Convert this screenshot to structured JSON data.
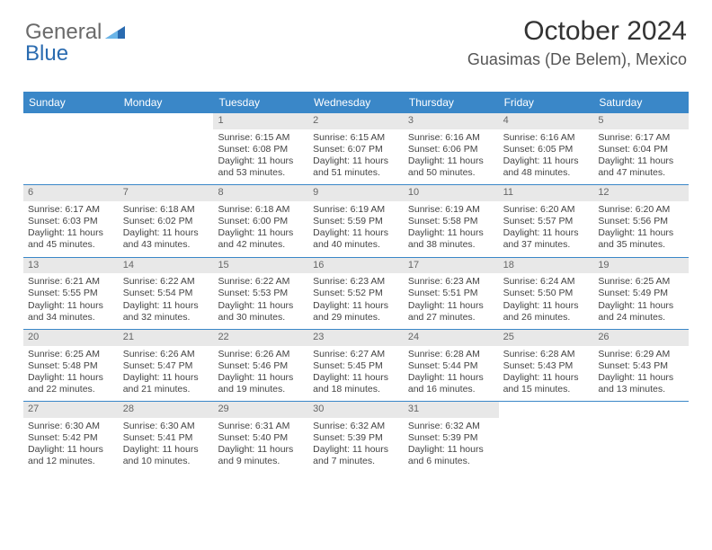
{
  "brand": {
    "part1": "General",
    "part2": "Blue"
  },
  "header": {
    "title": "October 2024",
    "location": "Guasimas (De Belem), Mexico"
  },
  "colors": {
    "header_bg": "#3a87c8",
    "header_text": "#ffffff",
    "daynum_bg": "#e8e8e8",
    "week_border": "#3a87c8",
    "body_text": "#444444"
  },
  "calendar": {
    "day_names": [
      "Sunday",
      "Monday",
      "Tuesday",
      "Wednesday",
      "Thursday",
      "Friday",
      "Saturday"
    ],
    "weeks": [
      [
        {
          "empty": true
        },
        {
          "empty": true
        },
        {
          "num": "1",
          "sunrise": "Sunrise: 6:15 AM",
          "sunset": "Sunset: 6:08 PM",
          "daylight": "Daylight: 11 hours and 53 minutes."
        },
        {
          "num": "2",
          "sunrise": "Sunrise: 6:15 AM",
          "sunset": "Sunset: 6:07 PM",
          "daylight": "Daylight: 11 hours and 51 minutes."
        },
        {
          "num": "3",
          "sunrise": "Sunrise: 6:16 AM",
          "sunset": "Sunset: 6:06 PM",
          "daylight": "Daylight: 11 hours and 50 minutes."
        },
        {
          "num": "4",
          "sunrise": "Sunrise: 6:16 AM",
          "sunset": "Sunset: 6:05 PM",
          "daylight": "Daylight: 11 hours and 48 minutes."
        },
        {
          "num": "5",
          "sunrise": "Sunrise: 6:17 AM",
          "sunset": "Sunset: 6:04 PM",
          "daylight": "Daylight: 11 hours and 47 minutes."
        }
      ],
      [
        {
          "num": "6",
          "sunrise": "Sunrise: 6:17 AM",
          "sunset": "Sunset: 6:03 PM",
          "daylight": "Daylight: 11 hours and 45 minutes."
        },
        {
          "num": "7",
          "sunrise": "Sunrise: 6:18 AM",
          "sunset": "Sunset: 6:02 PM",
          "daylight": "Daylight: 11 hours and 43 minutes."
        },
        {
          "num": "8",
          "sunrise": "Sunrise: 6:18 AM",
          "sunset": "Sunset: 6:00 PM",
          "daylight": "Daylight: 11 hours and 42 minutes."
        },
        {
          "num": "9",
          "sunrise": "Sunrise: 6:19 AM",
          "sunset": "Sunset: 5:59 PM",
          "daylight": "Daylight: 11 hours and 40 minutes."
        },
        {
          "num": "10",
          "sunrise": "Sunrise: 6:19 AM",
          "sunset": "Sunset: 5:58 PM",
          "daylight": "Daylight: 11 hours and 38 minutes."
        },
        {
          "num": "11",
          "sunrise": "Sunrise: 6:20 AM",
          "sunset": "Sunset: 5:57 PM",
          "daylight": "Daylight: 11 hours and 37 minutes."
        },
        {
          "num": "12",
          "sunrise": "Sunrise: 6:20 AM",
          "sunset": "Sunset: 5:56 PM",
          "daylight": "Daylight: 11 hours and 35 minutes."
        }
      ],
      [
        {
          "num": "13",
          "sunrise": "Sunrise: 6:21 AM",
          "sunset": "Sunset: 5:55 PM",
          "daylight": "Daylight: 11 hours and 34 minutes."
        },
        {
          "num": "14",
          "sunrise": "Sunrise: 6:22 AM",
          "sunset": "Sunset: 5:54 PM",
          "daylight": "Daylight: 11 hours and 32 minutes."
        },
        {
          "num": "15",
          "sunrise": "Sunrise: 6:22 AM",
          "sunset": "Sunset: 5:53 PM",
          "daylight": "Daylight: 11 hours and 30 minutes."
        },
        {
          "num": "16",
          "sunrise": "Sunrise: 6:23 AM",
          "sunset": "Sunset: 5:52 PM",
          "daylight": "Daylight: 11 hours and 29 minutes."
        },
        {
          "num": "17",
          "sunrise": "Sunrise: 6:23 AM",
          "sunset": "Sunset: 5:51 PM",
          "daylight": "Daylight: 11 hours and 27 minutes."
        },
        {
          "num": "18",
          "sunrise": "Sunrise: 6:24 AM",
          "sunset": "Sunset: 5:50 PM",
          "daylight": "Daylight: 11 hours and 26 minutes."
        },
        {
          "num": "19",
          "sunrise": "Sunrise: 6:25 AM",
          "sunset": "Sunset: 5:49 PM",
          "daylight": "Daylight: 11 hours and 24 minutes."
        }
      ],
      [
        {
          "num": "20",
          "sunrise": "Sunrise: 6:25 AM",
          "sunset": "Sunset: 5:48 PM",
          "daylight": "Daylight: 11 hours and 22 minutes."
        },
        {
          "num": "21",
          "sunrise": "Sunrise: 6:26 AM",
          "sunset": "Sunset: 5:47 PM",
          "daylight": "Daylight: 11 hours and 21 minutes."
        },
        {
          "num": "22",
          "sunrise": "Sunrise: 6:26 AM",
          "sunset": "Sunset: 5:46 PM",
          "daylight": "Daylight: 11 hours and 19 minutes."
        },
        {
          "num": "23",
          "sunrise": "Sunrise: 6:27 AM",
          "sunset": "Sunset: 5:45 PM",
          "daylight": "Daylight: 11 hours and 18 minutes."
        },
        {
          "num": "24",
          "sunrise": "Sunrise: 6:28 AM",
          "sunset": "Sunset: 5:44 PM",
          "daylight": "Daylight: 11 hours and 16 minutes."
        },
        {
          "num": "25",
          "sunrise": "Sunrise: 6:28 AM",
          "sunset": "Sunset: 5:43 PM",
          "daylight": "Daylight: 11 hours and 15 minutes."
        },
        {
          "num": "26",
          "sunrise": "Sunrise: 6:29 AM",
          "sunset": "Sunset: 5:43 PM",
          "daylight": "Daylight: 11 hours and 13 minutes."
        }
      ],
      [
        {
          "num": "27",
          "sunrise": "Sunrise: 6:30 AM",
          "sunset": "Sunset: 5:42 PM",
          "daylight": "Daylight: 11 hours and 12 minutes."
        },
        {
          "num": "28",
          "sunrise": "Sunrise: 6:30 AM",
          "sunset": "Sunset: 5:41 PM",
          "daylight": "Daylight: 11 hours and 10 minutes."
        },
        {
          "num": "29",
          "sunrise": "Sunrise: 6:31 AM",
          "sunset": "Sunset: 5:40 PM",
          "daylight": "Daylight: 11 hours and 9 minutes."
        },
        {
          "num": "30",
          "sunrise": "Sunrise: 6:32 AM",
          "sunset": "Sunset: 5:39 PM",
          "daylight": "Daylight: 11 hours and 7 minutes."
        },
        {
          "num": "31",
          "sunrise": "Sunrise: 6:32 AM",
          "sunset": "Sunset: 5:39 PM",
          "daylight": "Daylight: 11 hours and 6 minutes."
        },
        {
          "empty": true
        },
        {
          "empty": true
        }
      ]
    ]
  }
}
